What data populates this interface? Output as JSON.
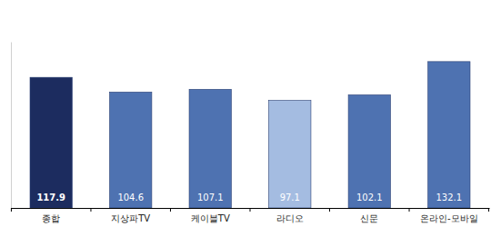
{
  "chart_data": {
    "type": "bar",
    "categories": [
      "종합",
      "지상파TV",
      "케이블TV",
      "라디오",
      "신문",
      "온라인-모바일"
    ],
    "values": [
      117.9,
      104.6,
      107.1,
      97.1,
      102.1,
      132.1
    ],
    "colors": [
      "#1c2c5f",
      "#4e72b1",
      "#4e72b1",
      "#a4bce1",
      "#4e72b1",
      "#4e72b1"
    ],
    "ylim": [
      0,
      150
    ],
    "data_labels": true,
    "tick_labels": "x"
  }
}
